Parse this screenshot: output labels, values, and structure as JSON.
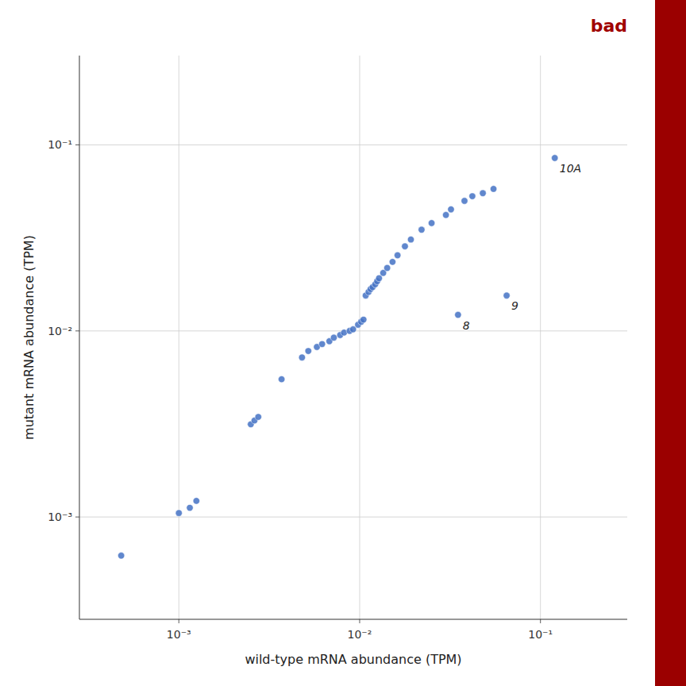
{
  "chart_data": {
    "type": "scatter",
    "title": "bad",
    "x_label": "wild-type mRNA abundance (TPM)",
    "y_label": "mutant mRNA abundance (TPM)",
    "color": "#4472C4",
    "log": true,
    "grid": true,
    "xlim": [
      0.0002818382931264454,
      0.3019951720402016
    ],
    "ylim": [
      0.0002818382931264454,
      0.3019951720402016
    ],
    "xticks": [
      {
        "value": 0.001,
        "label": "10⁻³"
      },
      {
        "value": 0.01,
        "label": "10⁻²"
      },
      {
        "value": 0.1,
        "label": "10⁻¹"
      }
    ],
    "yticks": [
      {
        "value": 0.001,
        "label": "10⁻³"
      },
      {
        "value": 0.01,
        "label": "10⁻²"
      },
      {
        "value": 0.1,
        "label": "10⁻¹"
      }
    ],
    "x": [
      0.00048,
      0.001,
      0.00115,
      0.00125,
      0.0025,
      0.00262,
      0.00275,
      0.0037,
      0.0048,
      0.0052,
      0.0058,
      0.0062,
      0.0068,
      0.0072,
      0.0078,
      0.0082,
      0.0088,
      0.0092,
      0.0098,
      0.0102,
      0.0105,
      0.0108,
      0.0112,
      0.0115,
      0.0118,
      0.0122,
      0.0125,
      0.0128,
      0.0135,
      0.0142,
      0.0152,
      0.0162,
      0.0178,
      0.0192,
      0.022,
      0.025,
      0.03,
      0.032,
      0.038,
      0.042,
      0.048,
      0.055,
      0.035,
      0.065,
      0.12
    ],
    "y": [
      0.00062,
      0.00105,
      0.00112,
      0.00122,
      0.00315,
      0.0033,
      0.00345,
      0.0055,
      0.0072,
      0.0078,
      0.0082,
      0.0085,
      0.0088,
      0.0092,
      0.0095,
      0.0098,
      0.01,
      0.0102,
      0.0108,
      0.0112,
      0.0115,
      0.0155,
      0.0162,
      0.0168,
      0.0172,
      0.0178,
      0.0185,
      0.0192,
      0.0205,
      0.0218,
      0.0235,
      0.0255,
      0.0285,
      0.031,
      0.035,
      0.038,
      0.042,
      0.045,
      0.05,
      0.053,
      0.055,
      0.058,
      0.0122,
      0.0155,
      0.085
    ],
    "annotations": [
      {
        "text": "10A",
        "x": 0.12,
        "y": 0.085
      },
      {
        "text": "8",
        "x": 0.035,
        "y": 0.0122
      },
      {
        "text": "9",
        "x": 0.065,
        "y": 0.0155
      }
    ]
  }
}
